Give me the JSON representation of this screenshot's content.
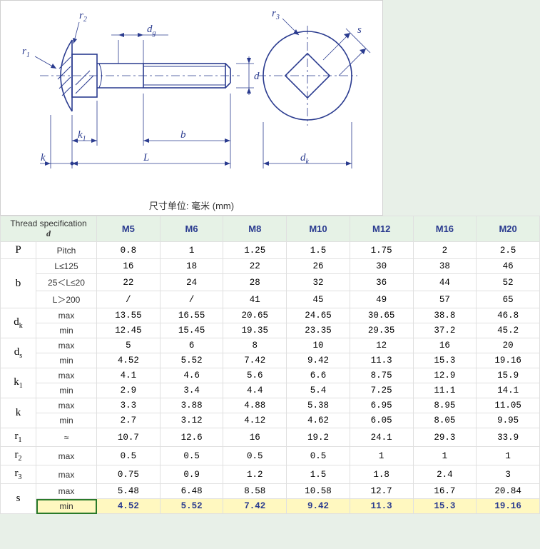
{
  "unit_caption": "尺寸单位: 毫米 (mm)",
  "diagram": {
    "labels": {
      "r1": "r",
      "r1s": "1",
      "r2": "r",
      "r2s": "2",
      "r3": "r",
      "r3s": "3",
      "dg": "d",
      "dgs": "g",
      "d": "d",
      "dk": "d",
      "dks": "k",
      "k": "k",
      "k1": "k",
      "k1s": "1",
      "L": "L",
      "b": "b",
      "s": "s"
    },
    "line_color": "#2a3b8f"
  },
  "table": {
    "header_label": "Thread specification",
    "header_sub": "d",
    "sizes": [
      "M5",
      "M6",
      "M8",
      "M10",
      "M12",
      "M16",
      "M20"
    ],
    "rows": [
      {
        "param": "P",
        "sub": "",
        "cond": "Pitch",
        "vals": [
          "0.8",
          "1",
          "1.25",
          "1.5",
          "1.75",
          "2",
          "2.5"
        ]
      },
      {
        "param": "",
        "sub": "",
        "cond": "L≤125",
        "vals": [
          "16",
          "18",
          "22",
          "26",
          "30",
          "38",
          "46"
        ]
      },
      {
        "param": "b",
        "sub": "",
        "cond": "25＜L≤20",
        "vals": [
          "22",
          "24",
          "28",
          "32",
          "36",
          "44",
          "52"
        ]
      },
      {
        "param": "",
        "sub": "",
        "cond": "L＞200",
        "vals": [
          "/",
          "/",
          "41",
          "45",
          "49",
          "57",
          "65"
        ]
      },
      {
        "param": "d",
        "sub": "k",
        "cond": "max",
        "vals": [
          "13.55",
          "16.55",
          "20.65",
          "24.65",
          "30.65",
          "38.8",
          "46.8"
        ]
      },
      {
        "param": "",
        "sub": "",
        "cond": "min",
        "vals": [
          "12.45",
          "15.45",
          "19.35",
          "23.35",
          "29.35",
          "37.2",
          "45.2"
        ]
      },
      {
        "param": "d",
        "sub": "s",
        "cond": "max",
        "vals": [
          "5",
          "6",
          "8",
          "10",
          "12",
          "16",
          "20"
        ]
      },
      {
        "param": "",
        "sub": "",
        "cond": "min",
        "vals": [
          "4.52",
          "5.52",
          "7.42",
          "9.42",
          "11.3",
          "15.3",
          "19.16"
        ]
      },
      {
        "param": "k",
        "sub": "1",
        "cond": "max",
        "vals": [
          "4.1",
          "4.6",
          "5.6",
          "6.6",
          "8.75",
          "12.9",
          "15.9"
        ]
      },
      {
        "param": "",
        "sub": "",
        "cond": "min",
        "vals": [
          "2.9",
          "3.4",
          "4.4",
          "5.4",
          "7.25",
          "11.1",
          "14.1"
        ]
      },
      {
        "param": "k",
        "sub": "",
        "cond": "max",
        "vals": [
          "3.3",
          "3.88",
          "4.88",
          "5.38",
          "6.95",
          "8.95",
          "11.05"
        ]
      },
      {
        "param": "",
        "sub": "",
        "cond": "min",
        "vals": [
          "2.7",
          "3.12",
          "4.12",
          "4.62",
          "6.05",
          "8.05",
          "9.95"
        ]
      },
      {
        "param": "r",
        "sub": "1",
        "cond": "≈",
        "vals": [
          "10.7",
          "12.6",
          "16",
          "19.2",
          "24.1",
          "29.3",
          "33.9"
        ]
      },
      {
        "param": "r",
        "sub": "2",
        "cond": "max",
        "vals": [
          "0.5",
          "0.5",
          "0.5",
          "0.5",
          "1",
          "1",
          "1"
        ]
      },
      {
        "param": "r",
        "sub": "3",
        "cond": "max",
        "vals": [
          "0.75",
          "0.9",
          "1.2",
          "1.5",
          "1.8",
          "2.4",
          "3"
        ]
      },
      {
        "param": "s",
        "sub": "",
        "cond": "max",
        "vals": [
          "5.48",
          "6.48",
          "8.58",
          "10.58",
          "12.7",
          "16.7",
          "20.84"
        ]
      },
      {
        "param": "",
        "sub": "",
        "cond": "min",
        "vals": [
          "4.52",
          "5.52",
          "7.42",
          "9.42",
          "11.3",
          "15.3",
          "19.16"
        ],
        "hl": true,
        "sel": true
      }
    ],
    "groups": [
      [
        0
      ],
      [
        1,
        2,
        3
      ],
      [
        4,
        5
      ],
      [
        6,
        7
      ],
      [
        8,
        9
      ],
      [
        10,
        11
      ],
      [
        12
      ],
      [
        13
      ],
      [
        14
      ],
      [
        15,
        16
      ]
    ]
  },
  "style": {
    "header_bg": "#e6f2e6",
    "header_fg": "#2a3b8f",
    "grid": "#e0e0e0",
    "highlight_bg": "#fff8c0",
    "select_border": "#2a7a2a",
    "page_bg": "#e8f0e8"
  }
}
